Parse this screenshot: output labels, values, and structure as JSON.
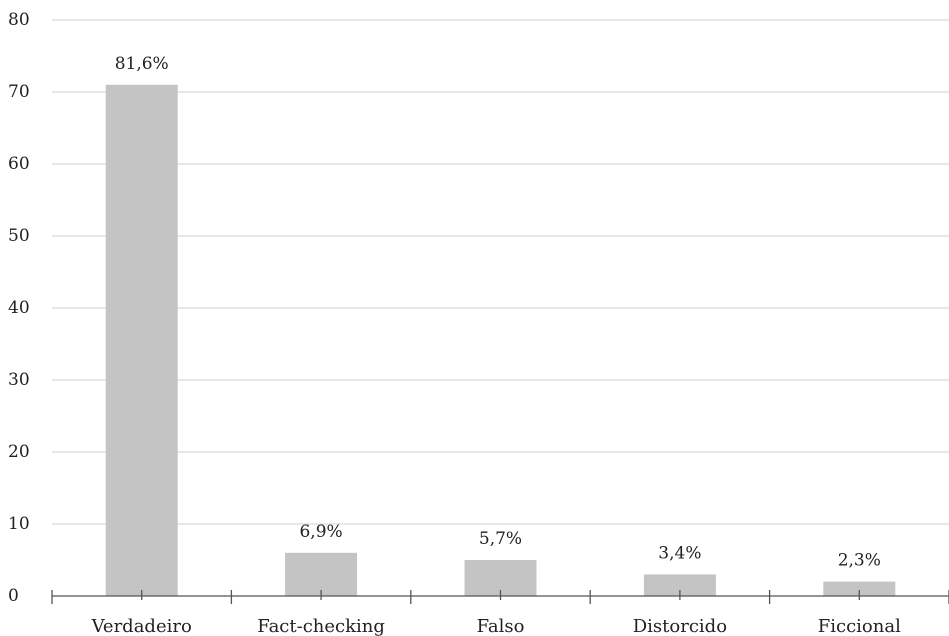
{
  "chart_data": {
    "type": "bar",
    "categories": [
      "Verdadeiro",
      "Fact-checking",
      "Falso",
      "Distorcido",
      "Ficcional"
    ],
    "values": [
      71,
      6,
      5,
      3,
      2
    ],
    "data_labels": [
      "81,6%",
      "6,9%",
      "5,7%",
      "3,4%",
      "2,3%"
    ],
    "ylim": [
      0,
      80
    ],
    "yticks": [
      "0",
      "10",
      "20",
      "30",
      "40",
      "50",
      "60",
      "70",
      "80"
    ],
    "ytick_values": [
      0,
      10,
      20,
      30,
      40,
      50,
      60,
      70,
      80
    ],
    "grid": true,
    "bar_color": "#c4c4c4",
    "grid_color": "#d9d9d9",
    "axis_color": "#555555"
  }
}
